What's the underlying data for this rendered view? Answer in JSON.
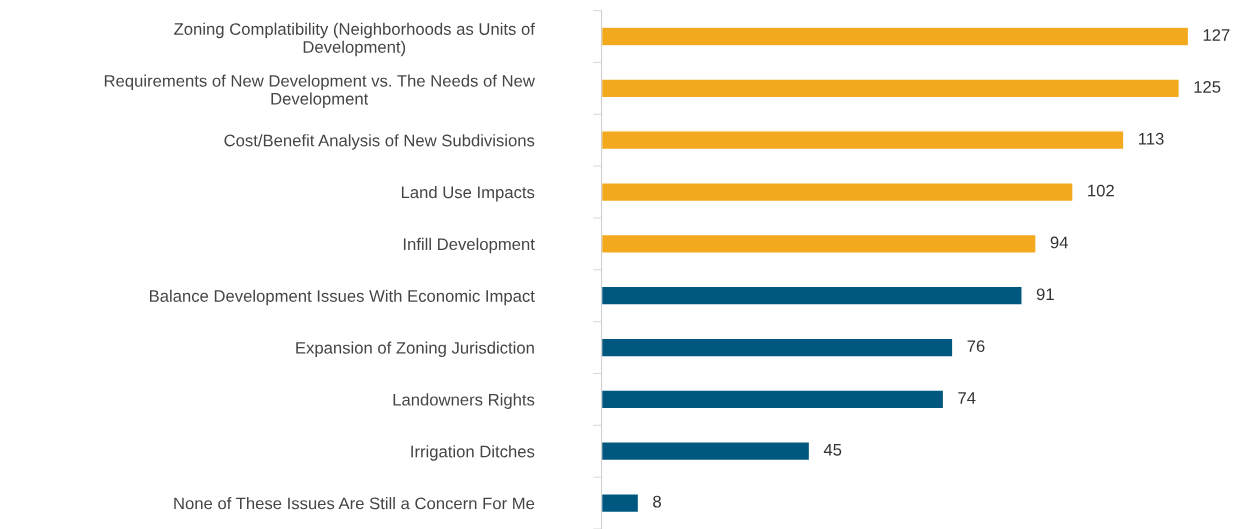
{
  "chart_data": {
    "type": "bar",
    "orientation": "horizontal",
    "categories": [
      "Zoning Complatibility (Neighborhoods as Units of\nDevelopment)",
      "Requirements of New Development vs. The Needs of New\nDevelopment",
      "Cost/Benefit Analysis of New Subdivisions",
      "Land Use Impacts",
      "Infill Development",
      "Balance Development Issues With Economic Impact",
      "Expansion of Zoning Jurisdiction",
      "Landowners Rights",
      "Irrigation Ditches",
      "None of These Issues Are Still a Concern For Me"
    ],
    "values": [
      127,
      125,
      113,
      102,
      94,
      91,
      76,
      74,
      45,
      8
    ],
    "colors": [
      "#f2a91e",
      "#f2a91e",
      "#f2a91e",
      "#f2a91e",
      "#f2a91e",
      "#00577f",
      "#00577f",
      "#00577f",
      "#00577f",
      "#00577f"
    ],
    "data_labels": true,
    "tick_labels": "y",
    "grid": false
  }
}
